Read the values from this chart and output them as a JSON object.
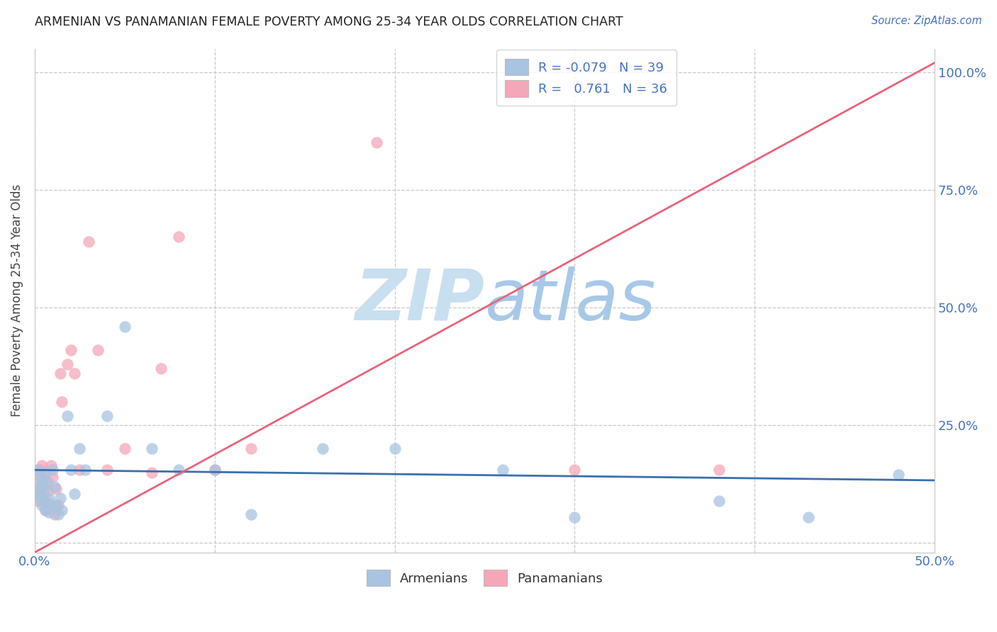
{
  "title": "ARMENIAN VS PANAMANIAN FEMALE POVERTY AMONG 25-34 YEAR OLDS CORRELATION CHART",
  "source": "Source: ZipAtlas.com",
  "ylabel": "Female Poverty Among 25-34 Year Olds",
  "xlim": [
    0.0,
    0.5
  ],
  "ylim": [
    -0.02,
    1.05
  ],
  "armenian_R": "-0.079",
  "armenian_N": "39",
  "panamanian_R": "0.761",
  "panamanian_N": "36",
  "armenian_color": "#a8c4e0",
  "panamanian_color": "#f4a7b9",
  "armenian_line_color": "#3a6fad",
  "panamanian_line_color": "#e8637a",
  "legend_text_color": "#4472c4",
  "watermark_color": "#d6e9f8",
  "axis_color": "#4472c4",
  "grid_color": "#c8c8c8",
  "armenians_x": [
    0.001,
    0.002,
    0.002,
    0.003,
    0.003,
    0.004,
    0.004,
    0.005,
    0.005,
    0.006,
    0.006,
    0.007,
    0.008,
    0.008,
    0.009,
    0.01,
    0.011,
    0.012,
    0.013,
    0.014,
    0.015,
    0.018,
    0.02,
    0.022,
    0.025,
    0.028,
    0.04,
    0.05,
    0.065,
    0.08,
    0.1,
    0.12,
    0.16,
    0.2,
    0.26,
    0.3,
    0.38,
    0.43,
    0.48
  ],
  "armenians_y": [
    0.155,
    0.12,
    0.095,
    0.14,
    0.105,
    0.08,
    0.13,
    0.11,
    0.09,
    0.15,
    0.07,
    0.13,
    0.095,
    0.065,
    0.08,
    0.155,
    0.12,
    0.08,
    0.06,
    0.095,
    0.07,
    0.27,
    0.155,
    0.105,
    0.2,
    0.155,
    0.27,
    0.46,
    0.2,
    0.155,
    0.155,
    0.06,
    0.2,
    0.2,
    0.155,
    0.055,
    0.09,
    0.055,
    0.145
  ],
  "panamanians_x": [
    0.001,
    0.002,
    0.002,
    0.003,
    0.003,
    0.004,
    0.004,
    0.005,
    0.005,
    0.006,
    0.006,
    0.007,
    0.008,
    0.009,
    0.01,
    0.011,
    0.012,
    0.013,
    0.014,
    0.015,
    0.018,
    0.02,
    0.022,
    0.025,
    0.03,
    0.035,
    0.04,
    0.05,
    0.065,
    0.07,
    0.08,
    0.1,
    0.12,
    0.19,
    0.3,
    0.38
  ],
  "panamanians_y": [
    0.14,
    0.115,
    0.09,
    0.155,
    0.115,
    0.1,
    0.165,
    0.09,
    0.14,
    0.125,
    0.07,
    0.11,
    0.085,
    0.165,
    0.14,
    0.06,
    0.115,
    0.08,
    0.36,
    0.3,
    0.38,
    0.41,
    0.36,
    0.155,
    0.64,
    0.41,
    0.155,
    0.2,
    0.15,
    0.37,
    0.65,
    0.155,
    0.2,
    0.85,
    0.155,
    0.155
  ]
}
